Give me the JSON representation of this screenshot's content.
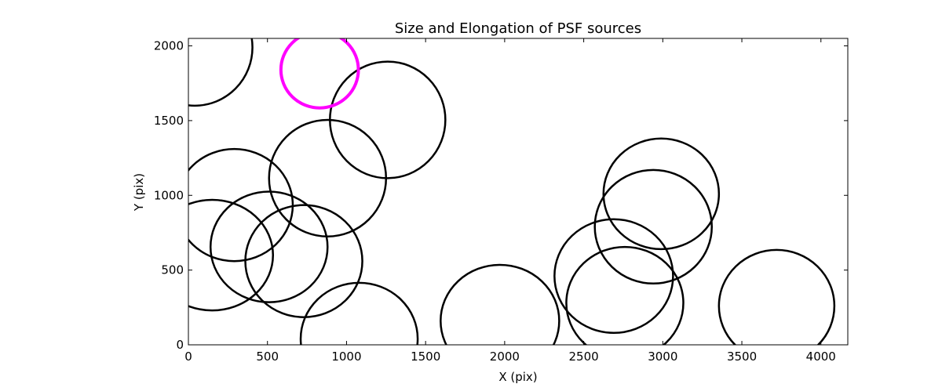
{
  "chart_data": {
    "type": "scatter",
    "title": "Size and Elongation of PSF sources",
    "xlabel": "X (pix)",
    "ylabel": "Y (pix)",
    "xlim": [
      0,
      4170
    ],
    "ylim": [
      0,
      2050
    ],
    "xticks": [
      0,
      500,
      1000,
      1500,
      2000,
      2500,
      3000,
      3500,
      4000
    ],
    "yticks": [
      0,
      500,
      1000,
      1500,
      2000
    ],
    "grid": false,
    "marker": "ellipse",
    "series": [
      {
        "color": "#000000",
        "points": [
          {
            "x": 40,
            "y": 1990,
            "rx": 365,
            "ry": 390
          },
          {
            "x": 1260,
            "y": 1505,
            "rx": 365,
            "ry": 390
          },
          {
            "x": 880,
            "y": 1115,
            "rx": 370,
            "ry": 390
          },
          {
            "x": 290,
            "y": 935,
            "rx": 370,
            "ry": 375
          },
          {
            "x": 150,
            "y": 600,
            "rx": 385,
            "ry": 370
          },
          {
            "x": 510,
            "y": 655,
            "rx": 370,
            "ry": 370
          },
          {
            "x": 730,
            "y": 560,
            "rx": 370,
            "ry": 375
          },
          {
            "x": 1080,
            "y": 40,
            "rx": 370,
            "ry": 375
          },
          {
            "x": 1970,
            "y": 160,
            "rx": 375,
            "ry": 375
          },
          {
            "x": 2690,
            "y": 460,
            "rx": 375,
            "ry": 380
          },
          {
            "x": 2760,
            "y": 280,
            "rx": 370,
            "ry": 375
          },
          {
            "x": 2940,
            "y": 790,
            "rx": 370,
            "ry": 380
          },
          {
            "x": 2990,
            "y": 1010,
            "rx": 365,
            "ry": 370
          },
          {
            "x": 3720,
            "y": 260,
            "rx": 365,
            "ry": 375
          }
        ]
      },
      {
        "color": "#ff00ff",
        "points": [
          {
            "x": 830,
            "y": 1840,
            "rx": 245,
            "ry": 255
          }
        ]
      }
    ]
  }
}
